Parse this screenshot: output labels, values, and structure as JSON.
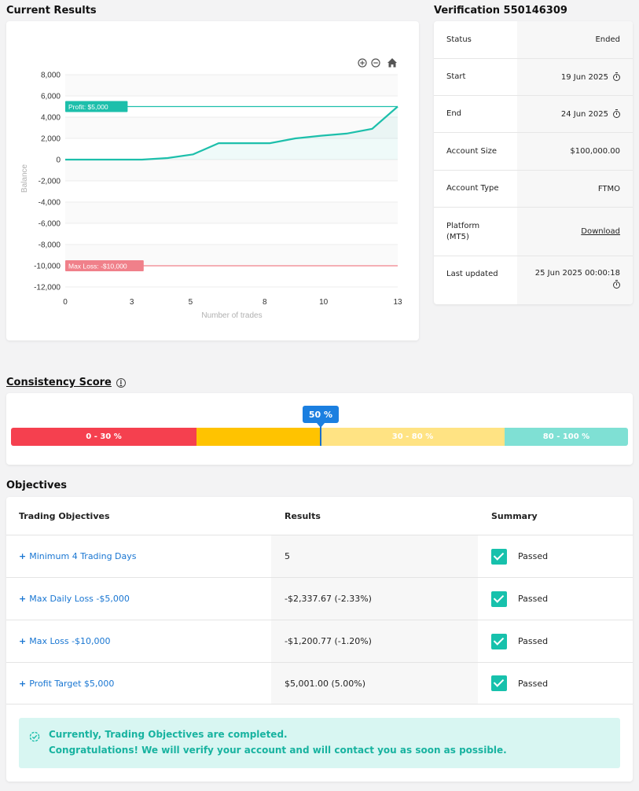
{
  "current_results": {
    "title": "Current Results",
    "toolbar": {
      "zoom_in_icon": "zoom-in-icon",
      "zoom_out_icon": "zoom-out-icon",
      "home_icon": "home-icon"
    },
    "chart_data": {
      "type": "line",
      "xlabel": "Number of trades",
      "ylabel": "Balance",
      "ylim": [
        -12000,
        8000
      ],
      "xlim": [
        0,
        13
      ],
      "y_ticks": [
        "8,000",
        "6,000",
        "4,000",
        "2,000",
        "0",
        "-2,000",
        "-4,000",
        "-6,000",
        "-8,000",
        "-10,000",
        "-12,000"
      ],
      "y_tick_values": [
        8000,
        6000,
        4000,
        2000,
        0,
        -2000,
        -4000,
        -6000,
        -8000,
        -10000,
        -12000
      ],
      "x_ticks": [
        "0",
        "3",
        "5",
        "8",
        "10",
        "13"
      ],
      "x_tick_values": [
        0,
        2.6,
        4.9,
        7.8,
        10.1,
        13
      ],
      "series": [
        {
          "x": [
            0,
            1.1,
            3.0,
            4.0,
            5.0,
            6.0,
            7.0,
            8.0,
            9.0,
            10.0,
            11.0,
            12.0,
            13.0
          ],
          "values": [
            0,
            0,
            0,
            150,
            500,
            1550,
            1550,
            1550,
            2000,
            2250,
            2450,
            2900,
            5000
          ],
          "color": "#1dbfab"
        }
      ],
      "reference_lines": [
        {
          "label": "Profit: $5,000",
          "value": 5000,
          "color": "#1dbfab"
        },
        {
          "label": "Max Loss: -$10,000",
          "value": -10000,
          "color": "#f0808a"
        }
      ],
      "grid": true
    }
  },
  "verification": {
    "title": "Verification 550146309",
    "rows": [
      {
        "label": "Status",
        "value": "Ended"
      },
      {
        "label": "Start",
        "value": "19 Jun 2025",
        "icon": "clock-icon"
      },
      {
        "label": "End",
        "value": "24 Jun 2025",
        "icon": "clock-icon"
      },
      {
        "label": "Account Size",
        "value": "$100,000.00"
      },
      {
        "label": "Account Type",
        "value": "FTMO"
      },
      {
        "label": "Platform (MT5)",
        "value": "Download"
      },
      {
        "label": "Last updated",
        "value": "25 Jun 2025 00:00:18",
        "icon": "clock-icon"
      }
    ]
  },
  "consistency": {
    "title": "Consistency Score",
    "info_icon": "info-icon",
    "score_label": "50 %",
    "score": 50,
    "segments": [
      {
        "label": "0 - 30 %",
        "color": "#f5404f"
      },
      {
        "label": "",
        "color": "#ffc300"
      },
      {
        "label": "30 - 80 %",
        "color": "#ffe383"
      },
      {
        "label": "80 - 100 %",
        "color": "#7fe0d4"
      }
    ]
  },
  "objectives": {
    "title": "Objectives",
    "headers": [
      "Trading Objectives",
      "Results",
      "Summary"
    ],
    "rows": [
      {
        "objective": "Minimum 4 Trading Days",
        "result": "5",
        "summary": "Passed"
      },
      {
        "objective": "Max Daily Loss -$5,000",
        "result": "-$2,337.67 (-2.33%)",
        "summary": "Passed"
      },
      {
        "objective": "Max Loss -$10,000",
        "result": "-$1,200.77 (-1.20%)",
        "summary": "Passed"
      },
      {
        "objective": "Profit Target $5,000",
        "result": "$5,001.00 (5.00%)",
        "summary": "Passed"
      }
    ],
    "notice_line1": "Currently, Trading Objectives are completed.",
    "notice_line2": "Congratulations! We will verify your account and will contact you as soon as possible."
  },
  "colors": {
    "accent_teal": "#1dbfab",
    "link_blue": "#1976d2",
    "danger": "#f5404f",
    "warning": "#ffc300"
  }
}
